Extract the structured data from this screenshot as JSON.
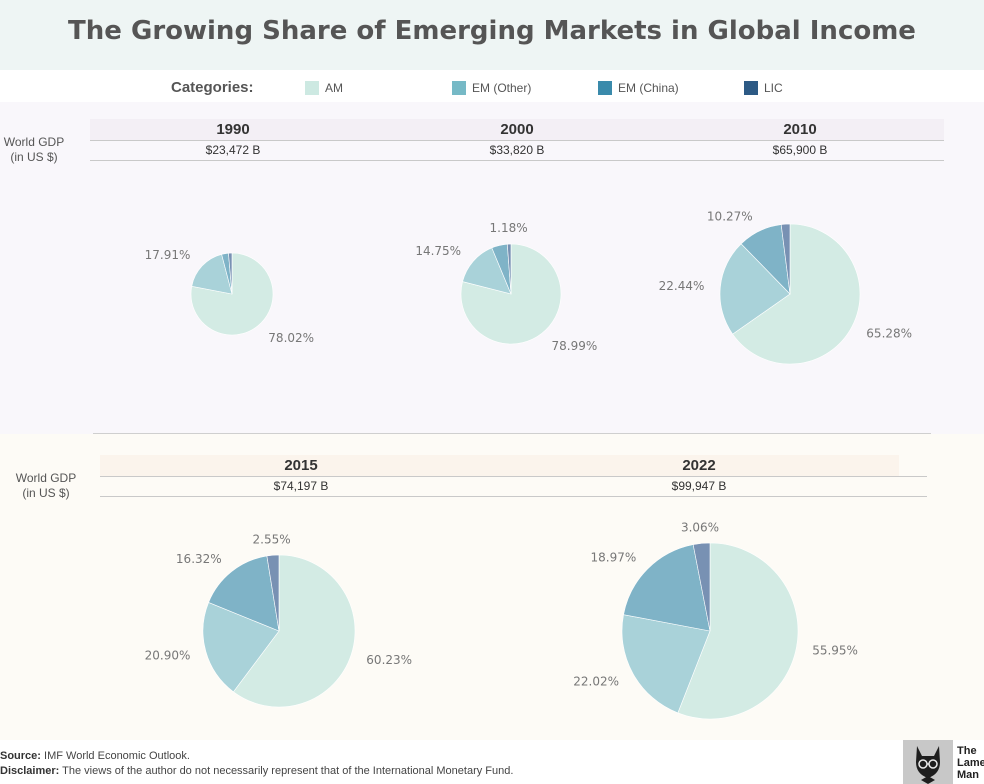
{
  "title": "The Growing Share of Emerging Markets in Global Income",
  "legend": {
    "title": "Categories:",
    "items": [
      {
        "label": "AM",
        "color": "#cde9e2"
      },
      {
        "label": "EM (Other)",
        "color": "#76b9c6"
      },
      {
        "label": "EM (China)",
        "color": "#3a8aab"
      },
      {
        "label": "LIC",
        "color": "#2d5a85"
      }
    ]
  },
  "gdp_label_line1": "World GDP",
  "gdp_label_line2": "(in US $)",
  "chart_data": [
    {
      "type": "pie",
      "title": "1990",
      "subtitle": "$23,472 B",
      "categories": [
        "AM",
        "EM (Other)",
        "EM (China)",
        "LIC"
      ],
      "values": [
        78.02,
        17.91,
        2.69,
        1.38
      ],
      "labels": [
        "78.02%",
        "17.91%",
        "",
        ""
      ]
    },
    {
      "type": "pie",
      "title": "2000",
      "subtitle": "$33,820 B",
      "categories": [
        "AM",
        "EM (Other)",
        "EM (China)",
        "LIC"
      ],
      "values": [
        78.99,
        14.75,
        5.08,
        1.18
      ],
      "labels": [
        "78.99%",
        "14.75%",
        "",
        "1.18%"
      ]
    },
    {
      "type": "pie",
      "title": "2010",
      "subtitle": "$65,900 B",
      "categories": [
        "AM",
        "EM (Other)",
        "EM (China)",
        "LIC"
      ],
      "values": [
        65.28,
        22.44,
        10.27,
        2.01
      ],
      "labels": [
        "65.28%",
        "22.44%",
        "10.27%",
        ""
      ]
    },
    {
      "type": "pie",
      "title": "2015",
      "subtitle": "$74,197 B",
      "categories": [
        "AM",
        "EM (Other)",
        "EM (China)",
        "LIC"
      ],
      "values": [
        60.23,
        20.9,
        16.32,
        2.55
      ],
      "labels": [
        "60.23%",
        "20.90%",
        "16.32%",
        "2.55%"
      ]
    },
    {
      "type": "pie",
      "title": "2022",
      "subtitle": "$99,947 B",
      "categories": [
        "AM",
        "EM (Other)",
        "EM (China)",
        "LIC"
      ],
      "values": [
        55.95,
        22.02,
        18.97,
        3.06
      ],
      "labels": [
        "55.95%",
        "22.02%",
        "18.97%",
        "3.06%"
      ]
    }
  ],
  "pie_colors": [
    "#d3ebe4",
    "#a9d2d9",
    "#7fb3c7",
    "#7891b3"
  ],
  "footer": {
    "source_label": "Source:",
    "source_text": "IMF World Economic Outlook.",
    "disclaimer_label": "Disclaimer:",
    "disclaimer_text": "The views of the author do not necessarily represent that of the International Monetary Fund."
  },
  "logo": {
    "line1": "The",
    "line2": "Lame",
    "line3": "Man"
  }
}
